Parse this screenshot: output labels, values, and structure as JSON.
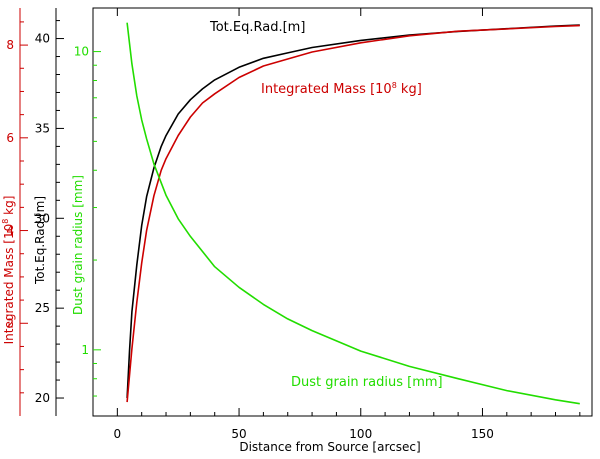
{
  "chart_data": {
    "type": "line",
    "xlabel": "Distance from Source [arcsec]",
    "xlim": [
      -10,
      195
    ],
    "xticks": [
      0,
      50,
      100,
      150
    ],
    "colors": {
      "black": "#000000",
      "red": "#cc0000",
      "green": "#22dd00"
    },
    "axes": {
      "radius": {
        "label": "Tot.Eq.Rad.[m]",
        "color": "#000000",
        "ylim": [
          19,
          41.7
        ],
        "ticks": [
          20,
          25,
          30,
          35,
          40
        ]
      },
      "mass": {
        "label_prefix": "Integrated Mass [10",
        "label_exp": "8",
        "label_suffix": " kg]",
        "color": "#cc0000",
        "ylim": [
          0,
          8.8
        ],
        "ticks": [
          2,
          4,
          6,
          8
        ]
      },
      "grain": {
        "label": "Dust grain radius [mm]",
        "color": "#22dd00",
        "scale": "log",
        "ylim": [
          0.6,
          14
        ],
        "ticks": [
          1,
          10
        ]
      }
    },
    "series": [
      {
        "name": "Tot.Eq.Rad.[m]",
        "axis": "radius",
        "color": "#000000",
        "x": [
          4,
          5,
          6,
          8,
          10,
          12,
          15,
          18,
          20,
          25,
          30,
          35,
          40,
          50,
          60,
          70,
          80,
          100,
          120,
          140,
          160,
          180,
          190
        ],
        "y": [
          20.0,
          22.6,
          24.8,
          27.4,
          29.6,
          31.2,
          32.8,
          34.0,
          34.6,
          35.8,
          36.6,
          37.2,
          37.7,
          38.4,
          38.9,
          39.2,
          39.5,
          39.9,
          40.2,
          40.4,
          40.55,
          40.7,
          40.75
        ]
      },
      {
        "name_prefix": "Integrated Mass [10",
        "name_exp": "8",
        "name_suffix": " kg]",
        "axis": "mass",
        "color": "#cc0000",
        "x": [
          4,
          6,
          8,
          10,
          12,
          15,
          18,
          20,
          25,
          30,
          35,
          40,
          50,
          60,
          70,
          80,
          100,
          120,
          140,
          160,
          180,
          190
        ],
        "y": [
          0.3,
          1.45,
          2.45,
          3.3,
          4.0,
          4.75,
          5.3,
          5.55,
          6.05,
          6.45,
          6.75,
          6.95,
          7.3,
          7.55,
          7.7,
          7.85,
          8.05,
          8.2,
          8.3,
          8.35,
          8.4,
          8.42
        ]
      },
      {
        "name": "Dust grain radius [mm]",
        "axis": "grain",
        "color": "#22dd00",
        "x": [
          4,
          6,
          8,
          10,
          12,
          15,
          20,
          25,
          30,
          40,
          50,
          60,
          70,
          80,
          100,
          120,
          140,
          160,
          180,
          190
        ],
        "y": [
          12.5,
          9.1,
          7.1,
          5.9,
          5.1,
          4.2,
          3.3,
          2.75,
          2.4,
          1.9,
          1.62,
          1.42,
          1.27,
          1.16,
          0.99,
          0.88,
          0.8,
          0.73,
          0.68,
          0.66
        ]
      }
    ]
  }
}
